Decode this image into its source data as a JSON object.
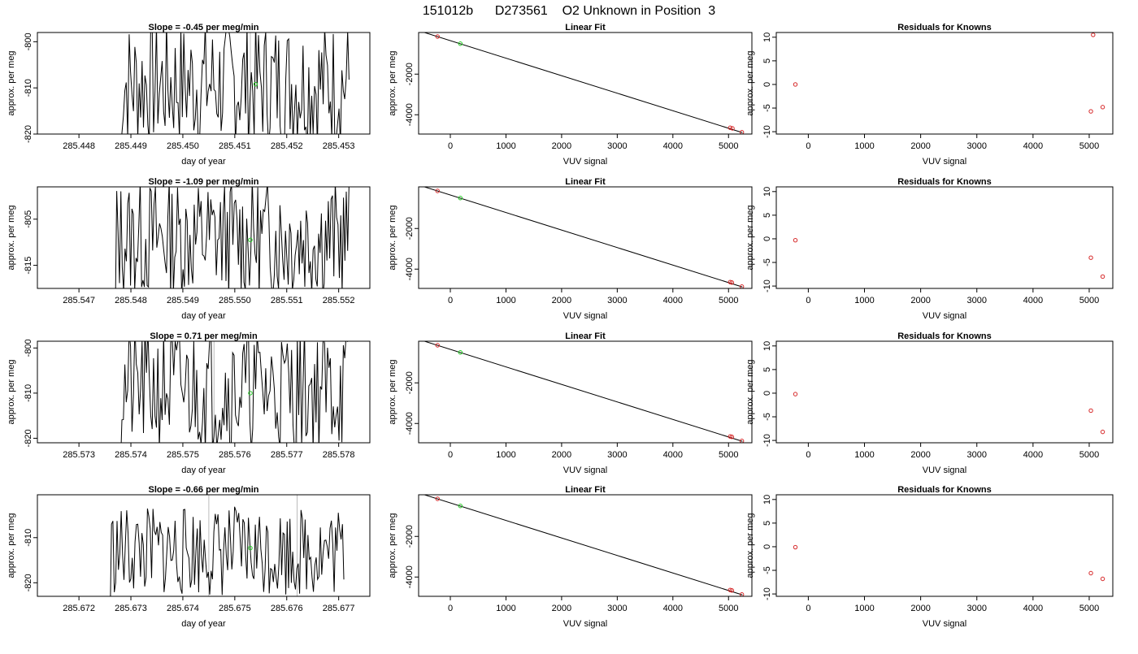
{
  "suptitle": "151012b      D273561    O2 Unknown in Position  3",
  "colors": {
    "known_points": "#d62728",
    "unknown_point": "#22cc22",
    "fit_line": "#000000",
    "gray_marker": "#bbbbbb"
  },
  "chart_data": [
    {
      "type": "line",
      "title": "Slope =  -0.45  per meg/min",
      "xlabel": "day of year",
      "ylabel": "approx. per meg",
      "xlim": [
        285.4472,
        285.4536
      ],
      "ylim": [
        -820,
        -798
      ],
      "xticks": [
        285.448,
        285.449,
        285.45,
        285.451,
        285.452,
        285.453
      ],
      "xtick_labels": [
        "285.448",
        "285.449",
        "285.450",
        "285.451",
        "285.452",
        "285.453"
      ],
      "yticks": [
        -820,
        -810,
        -800
      ],
      "ytick_labels": [
        "-820",
        "-810",
        "-800"
      ],
      "trace": {
        "x_start": 285.4488,
        "x_end": 285.4532,
        "n": 160,
        "mean": -809,
        "amp": 14,
        "seed": 7
      },
      "gray_lines_x": [
        285.4513
      ],
      "unknown_point": {
        "x": 285.4514,
        "y": -809.2
      }
    },
    {
      "type": "scatter",
      "title": "Linear Fit",
      "xlabel": "VUV signal",
      "ylabel": "approx. per meg",
      "xlim": [
        -570,
        5420
      ],
      "ylim": [
        -4950,
        50
      ],
      "xticks": [
        0,
        1000,
        2000,
        3000,
        4000,
        5000
      ],
      "xtick_labels": [
        "0",
        "1000",
        "2000",
        "3000",
        "4000",
        "5000"
      ],
      "yticks": [
        -4000,
        -2000
      ],
      "ytick_labels": [
        "-4000",
        "-2000"
      ],
      "fit_line": [
        [
          -500,
          80
        ],
        [
          5250,
          -4880
        ]
      ],
      "known_points": [
        {
          "x": -230,
          "y": -150
        },
        {
          "x": 5030,
          "y": -4640
        },
        {
          "x": 5070,
          "y": -4670
        },
        {
          "x": 5240,
          "y": -4860
        }
      ],
      "unknown_point": {
        "x": 180,
        "y": -500
      }
    },
    {
      "type": "scatter",
      "title": "Residuals for Knowns",
      "xlabel": "VUV signal",
      "ylabel": "approx. per meg",
      "xlim": [
        -570,
        5420
      ],
      "ylim": [
        -10.5,
        11
      ],
      "xticks": [
        0,
        1000,
        2000,
        3000,
        4000,
        5000
      ],
      "xtick_labels": [
        "0",
        "1000",
        "2000",
        "3000",
        "4000",
        "5000"
      ],
      "yticks": [
        -10,
        -5,
        0,
        5,
        10
      ],
      "ytick_labels": [
        "-10",
        "-5",
        "0",
        "5",
        "10"
      ],
      "known_points": [
        {
          "x": -230,
          "y": 0
        },
        {
          "x": 5070,
          "y": 10.5
        },
        {
          "x": 5030,
          "y": -5.7
        },
        {
          "x": 5240,
          "y": -4.8
        }
      ]
    },
    {
      "type": "line",
      "title": "Slope =  -1.09  per meg/min",
      "xlabel": "day of year",
      "ylabel": "approx. per meg",
      "xlim": [
        285.5462,
        285.5526
      ],
      "ylim": [
        -820,
        -798
      ],
      "xticks": [
        285.547,
        285.548,
        285.549,
        285.55,
        285.551,
        285.552
      ],
      "xtick_labels": [
        "285.547",
        "285.548",
        "285.549",
        "285.550",
        "285.551",
        "285.552"
      ],
      "yticks": [
        -815,
        -805
      ],
      "ytick_labels": [
        "-815",
        "-805"
      ],
      "trace": {
        "x_start": 285.5477,
        "x_end": 285.5522,
        "n": 170,
        "mean": -809,
        "amp": 13,
        "seed": 13
      },
      "gray_lines_x": [],
      "unknown_point": {
        "x": 285.5503,
        "y": -809.5
      }
    },
    {
      "type": "scatter",
      "title": "Linear Fit",
      "xlabel": "VUV signal",
      "ylabel": "approx. per meg",
      "xlim": [
        -570,
        5420
      ],
      "ylim": [
        -4950,
        50
      ],
      "xticks": [
        0,
        1000,
        2000,
        3000,
        4000,
        5000
      ],
      "xtick_labels": [
        "0",
        "1000",
        "2000",
        "3000",
        "4000",
        "5000"
      ],
      "yticks": [
        -4000,
        -2000
      ],
      "ytick_labels": [
        "-4000",
        "-2000"
      ],
      "fit_line": [
        [
          -500,
          80
        ],
        [
          5250,
          -4880
        ]
      ],
      "known_points": [
        {
          "x": -230,
          "y": -150
        },
        {
          "x": 5030,
          "y": -4640
        },
        {
          "x": 5060,
          "y": -4660
        },
        {
          "x": 5240,
          "y": -4860
        }
      ],
      "unknown_point": {
        "x": 180,
        "y": -500
      }
    },
    {
      "type": "scatter",
      "title": "Residuals for Knowns",
      "xlabel": "VUV signal",
      "ylabel": "approx. per meg",
      "xlim": [
        -570,
        5420
      ],
      "ylim": [
        -10.5,
        11
      ],
      "xticks": [
        0,
        1000,
        2000,
        3000,
        4000,
        5000
      ],
      "xtick_labels": [
        "0",
        "1000",
        "2000",
        "3000",
        "4000",
        "5000"
      ],
      "yticks": [
        -10,
        -5,
        0,
        5,
        10
      ],
      "ytick_labels": [
        "-10",
        "-5",
        "0",
        "5",
        "10"
      ],
      "known_points": [
        {
          "x": -230,
          "y": -0.3
        },
        {
          "x": 5030,
          "y": -4
        },
        {
          "x": 5240,
          "y": -8
        }
      ]
    },
    {
      "type": "line",
      "title": "Slope =  0.71  per meg/min",
      "xlabel": "day of year",
      "ylabel": "approx. per meg",
      "xlim": [
        285.5722,
        285.5786
      ],
      "ylim": [
        -821,
        -798.5
      ],
      "xticks": [
        285.573,
        285.574,
        285.575,
        285.576,
        285.577,
        285.578
      ],
      "xtick_labels": [
        "285.573",
        "285.574",
        "285.575",
        "285.576",
        "285.577",
        "285.578"
      ],
      "yticks": [
        -820,
        -810,
        -800
      ],
      "ytick_labels": [
        "-820",
        "-810",
        "-800"
      ],
      "trace": {
        "x_start": 285.5738,
        "x_end": 285.5782,
        "n": 160,
        "mean": -809,
        "amp": 14,
        "seed": 21
      },
      "gray_lines_x": [
        285.5756,
        285.5772
      ],
      "unknown_point": {
        "x": 285.5763,
        "y": -810
      }
    },
    {
      "type": "scatter",
      "title": "Linear Fit",
      "xlabel": "VUV signal",
      "ylabel": "approx. per meg",
      "xlim": [
        -570,
        5420
      ],
      "ylim": [
        -4950,
        50
      ],
      "xticks": [
        0,
        1000,
        2000,
        3000,
        4000,
        5000
      ],
      "xtick_labels": [
        "0",
        "1000",
        "2000",
        "3000",
        "4000",
        "5000"
      ],
      "yticks": [
        -4000,
        -2000
      ],
      "ytick_labels": [
        "-4000",
        "-2000"
      ],
      "fit_line": [
        [
          -500,
          80
        ],
        [
          5250,
          -4880
        ]
      ],
      "known_points": [
        {
          "x": -230,
          "y": -150
        },
        {
          "x": 5030,
          "y": -4640
        },
        {
          "x": 5060,
          "y": -4660
        },
        {
          "x": 5240,
          "y": -4860
        }
      ],
      "unknown_point": {
        "x": 180,
        "y": -500
      }
    },
    {
      "type": "scatter",
      "title": "Residuals for Knowns",
      "xlabel": "VUV signal",
      "ylabel": "approx. per meg",
      "xlim": [
        -570,
        5420
      ],
      "ylim": [
        -10.5,
        11
      ],
      "xticks": [
        0,
        1000,
        2000,
        3000,
        4000,
        5000
      ],
      "xtick_labels": [
        "0",
        "1000",
        "2000",
        "3000",
        "4000",
        "5000"
      ],
      "yticks": [
        -10,
        -5,
        0,
        5,
        10
      ],
      "ytick_labels": [
        "-10",
        "-5",
        "0",
        "5",
        "10"
      ],
      "known_points": [
        {
          "x": -230,
          "y": -0.2
        },
        {
          "x": 5030,
          "y": -3.7
        },
        {
          "x": 5240,
          "y": -8.2
        }
      ]
    },
    {
      "type": "line",
      "title": "Slope =  -0.66  per meg/min",
      "xlabel": "day of year",
      "ylabel": "approx. per meg",
      "xlim": [
        285.6712,
        285.6776
      ],
      "ylim": [
        -823,
        -800.5
      ],
      "xticks": [
        285.672,
        285.673,
        285.674,
        285.675,
        285.676,
        285.677
      ],
      "xtick_labels": [
        "285.672",
        "285.673",
        "285.674",
        "285.675",
        "285.676",
        "285.677"
      ],
      "yticks": [
        -820,
        -810
      ],
      "ytick_labels": [
        "-820",
        "-810"
      ],
      "trace": {
        "x_start": 285.6726,
        "x_end": 285.6771,
        "n": 170,
        "mean": -813,
        "amp": 10,
        "seed": 33
      },
      "gray_lines_x": [
        285.6745,
        285.6762
      ],
      "unknown_point": {
        "x": 285.6753,
        "y": -812.3
      }
    },
    {
      "type": "scatter",
      "title": "Linear Fit",
      "xlabel": "VUV signal",
      "ylabel": "approx. per meg",
      "xlim": [
        -570,
        5420
      ],
      "ylim": [
        -4950,
        50
      ],
      "xticks": [
        0,
        1000,
        2000,
        3000,
        4000,
        5000
      ],
      "xtick_labels": [
        "0",
        "1000",
        "2000",
        "3000",
        "4000",
        "5000"
      ],
      "yticks": [
        -4000,
        -2000
      ],
      "ytick_labels": [
        "-4000",
        "-2000"
      ],
      "fit_line": [
        [
          -500,
          80
        ],
        [
          5250,
          -4880
        ]
      ],
      "known_points": [
        {
          "x": -230,
          "y": -150
        },
        {
          "x": 5030,
          "y": -4640
        },
        {
          "x": 5060,
          "y": -4660
        },
        {
          "x": 5240,
          "y": -4860
        }
      ],
      "unknown_point": {
        "x": 180,
        "y": -500
      }
    },
    {
      "type": "scatter",
      "title": "Residuals for Knowns",
      "xlabel": "VUV signal",
      "ylabel": "approx. per meg",
      "xlim": [
        -570,
        5420
      ],
      "ylim": [
        -10.5,
        11
      ],
      "xticks": [
        0,
        1000,
        2000,
        3000,
        4000,
        5000
      ],
      "xtick_labels": [
        "0",
        "1000",
        "2000",
        "3000",
        "4000",
        "5000"
      ],
      "yticks": [
        -10,
        -5,
        0,
        5,
        10
      ],
      "ytick_labels": [
        "-10",
        "-5",
        "0",
        "5",
        "10"
      ],
      "known_points": [
        {
          "x": -230,
          "y": -0.1
        },
        {
          "x": 5030,
          "y": -5.6
        },
        {
          "x": 5240,
          "y": -6.8
        }
      ]
    }
  ]
}
